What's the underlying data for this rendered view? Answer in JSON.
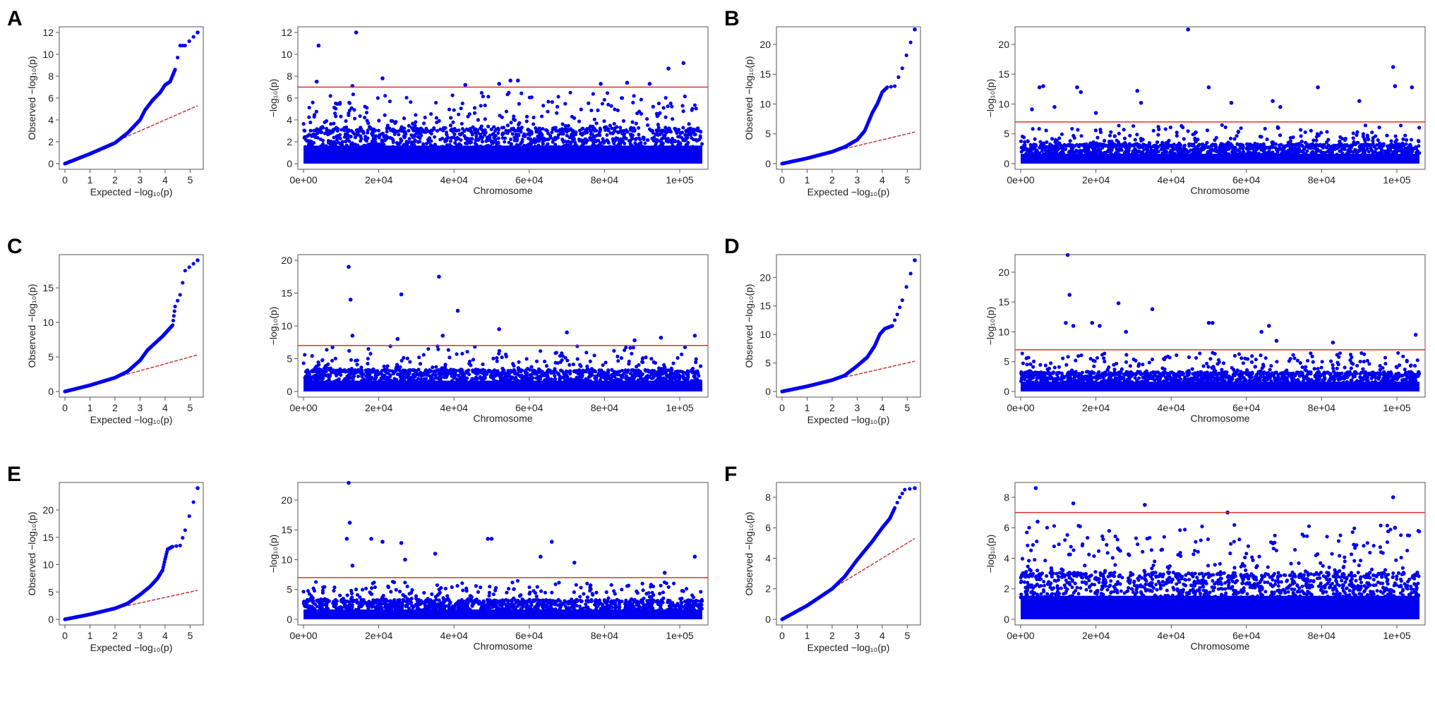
{
  "figure": {
    "title": ""
  },
  "colors": {
    "points": "#0000ee",
    "threshold": "#e0302a",
    "diagonal": "#c62828",
    "axis": "#555555",
    "text": "#222222"
  },
  "chart_data": [
    {
      "panel": "A",
      "qq": {
        "type": "scatter",
        "xlabel": "Expected −log₁₀(p)",
        "ylabel": "Observed −log₁₀(p)",
        "xlim": [
          0,
          5.3
        ],
        "ylim": [
          0,
          12
        ],
        "xticks": [
          0,
          1,
          2,
          3,
          4,
          5
        ],
        "yticks": [
          0,
          2,
          4,
          6,
          8,
          10,
          12
        ],
        "curve": [
          [
            0,
            0
          ],
          [
            1,
            0.9
          ],
          [
            2,
            1.9
          ],
          [
            2.5,
            2.8
          ],
          [
            3,
            4.0
          ],
          [
            3.2,
            4.9
          ],
          [
            3.5,
            5.8
          ],
          [
            3.8,
            6.5
          ],
          [
            4.0,
            7.2
          ],
          [
            4.2,
            7.5
          ],
          [
            4.4,
            8.6
          ],
          [
            4.6,
            10.8
          ],
          [
            4.8,
            10.8
          ],
          [
            5.3,
            12.0
          ]
        ],
        "diagonal_to": 5.3
      },
      "manhattan": {
        "type": "scatter",
        "xlabel": "Chromosome",
        "ylabel": "−log₁₀(p)",
        "xlim": [
          0,
          106000
        ],
        "ylim": [
          0,
          12
        ],
        "xticks": [
          "0e+00",
          "2e+04",
          "4e+04",
          "6e+04",
          "8e+04",
          "1e+05"
        ],
        "xtick_values": [
          0,
          20000,
          40000,
          60000,
          80000,
          100000
        ],
        "yticks": [
          0,
          2,
          4,
          6,
          8,
          10,
          12
        ],
        "threshold": 7.0,
        "significant_hits": [
          [
            4000,
            10.8
          ],
          [
            3500,
            7.5
          ],
          [
            14000,
            12.0
          ],
          [
            21000,
            7.8
          ],
          [
            43000,
            7.2
          ],
          [
            52000,
            7.3
          ],
          [
            55000,
            7.6
          ],
          [
            57000,
            7.6
          ],
          [
            79000,
            7.3
          ],
          [
            86000,
            7.4
          ],
          [
            92000,
            7.3
          ],
          [
            97000,
            8.7
          ],
          [
            101000,
            9.2
          ],
          [
            13000,
            7.1
          ]
        ],
        "bulk_max": 3.0,
        "scatter_max": 6.5
      }
    },
    {
      "panel": "B",
      "qq": {
        "type": "scatter",
        "xlabel": "Expected −log₁₀(p)",
        "ylabel": "Observed −log₁₀(p)",
        "xlim": [
          0,
          5.3
        ],
        "ylim": [
          0,
          22
        ],
        "xticks": [
          0,
          1,
          2,
          3,
          4,
          5
        ],
        "yticks": [
          0,
          5,
          10,
          15,
          20
        ],
        "curve": [
          [
            0,
            0
          ],
          [
            1,
            0.9
          ],
          [
            2,
            2.0
          ],
          [
            2.5,
            2.8
          ],
          [
            3,
            4.0
          ],
          [
            3.3,
            5.5
          ],
          [
            3.6,
            8.5
          ],
          [
            3.8,
            10.0
          ],
          [
            4.0,
            12.0
          ],
          [
            4.2,
            12.8
          ],
          [
            4.5,
            13.0
          ],
          [
            4.8,
            16.0
          ],
          [
            5.3,
            22.5
          ]
        ],
        "diagonal_to": 5.3
      },
      "manhattan": {
        "type": "scatter",
        "xlabel": "Chromosome",
        "ylabel": "−log₁₀(p)",
        "xlim": [
          0,
          106000
        ],
        "ylim": [
          0,
          22
        ],
        "xticks": [
          "0e+00",
          "2e+04",
          "4e+04",
          "6e+04",
          "8e+04",
          "1e+05"
        ],
        "xtick_values": [
          0,
          20000,
          40000,
          60000,
          80000,
          100000
        ],
        "yticks": [
          0,
          5,
          10,
          15,
          20
        ],
        "threshold": 7.0,
        "significant_hits": [
          [
            3000,
            9.1
          ],
          [
            5000,
            12.8
          ],
          [
            6000,
            13.0
          ],
          [
            9000,
            9.5
          ],
          [
            15000,
            12.8
          ],
          [
            16000,
            12.0
          ],
          [
            31000,
            12.2
          ],
          [
            32000,
            10.2
          ],
          [
            44500,
            22.5
          ],
          [
            50000,
            12.8
          ],
          [
            56000,
            10.2
          ],
          [
            67000,
            10.5
          ],
          [
            69000,
            9.5
          ],
          [
            79000,
            12.8
          ],
          [
            90000,
            10.5
          ],
          [
            99000,
            16.2
          ],
          [
            99500,
            13.0
          ],
          [
            104000,
            12.8
          ],
          [
            20000,
            8.5
          ]
        ],
        "bulk_max": 3.0,
        "scatter_max": 6.5
      }
    },
    {
      "panel": "C",
      "qq": {
        "type": "scatter",
        "xlabel": "Expected −log₁₀(p)",
        "ylabel": "Observed −log₁₀(p)",
        "xlim": [
          0,
          5.3
        ],
        "ylim": [
          0,
          19
        ],
        "xticks": [
          0,
          1,
          2,
          3,
          4,
          5
        ],
        "yticks": [
          0,
          5,
          10,
          15
        ],
        "curve": [
          [
            0,
            0
          ],
          [
            1,
            0.9
          ],
          [
            2,
            2.0
          ],
          [
            2.5,
            2.9
          ],
          [
            3,
            4.5
          ],
          [
            3.3,
            6.0
          ],
          [
            3.6,
            7.0
          ],
          [
            3.9,
            8.0
          ],
          [
            4.1,
            8.8
          ],
          [
            4.3,
            9.6
          ],
          [
            4.4,
            12.3
          ],
          [
            4.6,
            14.0
          ],
          [
            4.8,
            17.5
          ],
          [
            5.3,
            19.0
          ]
        ],
        "diagonal_to": 5.3
      },
      "manhattan": {
        "type": "scatter",
        "xlabel": "Chromosome",
        "ylabel": "−log₁₀(p)",
        "xlim": [
          0,
          106000
        ],
        "ylim": [
          0,
          20
        ],
        "xticks": [
          "0e+00",
          "2e+04",
          "4e+04",
          "6e+04",
          "8e+04",
          "1e+05"
        ],
        "xtick_values": [
          0,
          20000,
          40000,
          60000,
          80000,
          100000
        ],
        "yticks": [
          0,
          5,
          10,
          15,
          20
        ],
        "threshold": 7.0,
        "significant_hits": [
          [
            12000,
            19.0
          ],
          [
            12500,
            14.0
          ],
          [
            26000,
            14.8
          ],
          [
            36000,
            17.5
          ],
          [
            41000,
            12.3
          ],
          [
            13000,
            8.5
          ],
          [
            25000,
            8.0
          ],
          [
            37000,
            8.5
          ],
          [
            52000,
            9.5
          ],
          [
            70000,
            9.0
          ],
          [
            88000,
            7.8
          ],
          [
            95000,
            8.2
          ],
          [
            104000,
            8.5
          ]
        ],
        "bulk_max": 3.0,
        "scatter_max": 7.0
      }
    },
    {
      "panel": "D",
      "qq": {
        "type": "scatter",
        "xlabel": "Expected −log₁₀(p)",
        "ylabel": "Observed −log₁₀(p)",
        "xlim": [
          0,
          5.3
        ],
        "ylim": [
          0,
          23
        ],
        "xticks": [
          0,
          1,
          2,
          3,
          4,
          5
        ],
        "yticks": [
          0,
          5,
          10,
          15,
          20
        ],
        "curve": [
          [
            0,
            0
          ],
          [
            1,
            0.9
          ],
          [
            2,
            2.0
          ],
          [
            2.5,
            2.8
          ],
          [
            3,
            4.5
          ],
          [
            3.4,
            6.0
          ],
          [
            3.7,
            8.0
          ],
          [
            3.9,
            10.0
          ],
          [
            4.1,
            11.0
          ],
          [
            4.4,
            11.5
          ],
          [
            4.6,
            13.5
          ],
          [
            4.8,
            16.0
          ],
          [
            5.3,
            23.0
          ]
        ],
        "diagonal_to": 5.3
      },
      "manhattan": {
        "type": "scatter",
        "xlabel": "Chromosome",
        "ylabel": "−log₁₀(p)",
        "xlim": [
          0,
          106000
        ],
        "ylim": [
          0,
          22
        ],
        "xticks": [
          "0e+00",
          "2e+04",
          "4e+04",
          "6e+04",
          "8e+04",
          "1e+05"
        ],
        "xtick_values": [
          0,
          20000,
          40000,
          60000,
          80000,
          100000
        ],
        "yticks": [
          0,
          5,
          10,
          15,
          20
        ],
        "threshold": 7.0,
        "significant_hits": [
          [
            12500,
            23.0
          ],
          [
            13000,
            16.2
          ],
          [
            12000,
            11.5
          ],
          [
            14000,
            11.0
          ],
          [
            19000,
            11.5
          ],
          [
            21000,
            11.0
          ],
          [
            26000,
            14.8
          ],
          [
            28000,
            10.0
          ],
          [
            35000,
            13.8
          ],
          [
            50000,
            11.5
          ],
          [
            51000,
            11.5
          ],
          [
            64000,
            10.0
          ],
          [
            66000,
            11.0
          ],
          [
            68000,
            8.5
          ],
          [
            83000,
            8.2
          ],
          [
            105000,
            9.5
          ]
        ],
        "bulk_max": 3.0,
        "scatter_max": 6.5
      }
    },
    {
      "panel": "E",
      "qq": {
        "type": "scatter",
        "xlabel": "Expected −log₁₀(p)",
        "ylabel": "Observed −log₁₀(p)",
        "xlim": [
          0,
          5.3
        ],
        "ylim": [
          0,
          24
        ],
        "xticks": [
          0,
          1,
          2,
          3,
          4,
          5
        ],
        "yticks": [
          0,
          5,
          10,
          15,
          20
        ],
        "curve": [
          [
            0,
            0
          ],
          [
            1,
            0.9
          ],
          [
            2,
            2.0
          ],
          [
            2.5,
            2.9
          ],
          [
            3,
            4.5
          ],
          [
            3.4,
            6.0
          ],
          [
            3.7,
            7.5
          ],
          [
            3.9,
            9.0
          ],
          [
            4.0,
            11.0
          ],
          [
            4.1,
            12.8
          ],
          [
            4.3,
            13.3
          ],
          [
            4.6,
            13.5
          ],
          [
            4.8,
            16.3
          ],
          [
            5.3,
            24.0
          ]
        ],
        "diagonal_to": 5.3
      },
      "manhattan": {
        "type": "scatter",
        "xlabel": "Chromosome",
        "ylabel": "−log₁₀(p)",
        "xlim": [
          0,
          106000
        ],
        "ylim": [
          0,
          22
        ],
        "xticks": [
          "0e+00",
          "2e+04",
          "4e+04",
          "6e+04",
          "8e+04",
          "1e+05"
        ],
        "xtick_values": [
          0,
          20000,
          40000,
          60000,
          80000,
          100000
        ],
        "yticks": [
          0,
          5,
          10,
          15,
          20
        ],
        "threshold": 7.0,
        "significant_hits": [
          [
            12000,
            24.0
          ],
          [
            12300,
            16.2
          ],
          [
            11500,
            13.5
          ],
          [
            13000,
            9.0
          ],
          [
            18000,
            13.5
          ],
          [
            21000,
            13.0
          ],
          [
            26000,
            12.8
          ],
          [
            27000,
            10.0
          ],
          [
            35000,
            11.0
          ],
          [
            49000,
            13.5
          ],
          [
            50000,
            13.5
          ],
          [
            63000,
            10.5
          ],
          [
            66000,
            13.0
          ],
          [
            72000,
            9.5
          ],
          [
            96000,
            7.8
          ],
          [
            104000,
            10.5
          ]
        ],
        "bulk_max": 3.0,
        "scatter_max": 6.5
      }
    },
    {
      "panel": "F",
      "qq": {
        "type": "scatter",
        "xlabel": "Expected −log₁₀(p)",
        "ylabel": "Observed −log₁₀(p)",
        "xlim": [
          0,
          5.3
        ],
        "ylim": [
          0,
          8.6
        ],
        "xticks": [
          0,
          1,
          2,
          3,
          4,
          5
        ],
        "yticks": [
          0,
          2,
          4,
          6,
          8
        ],
        "curve": [
          [
            0,
            0
          ],
          [
            1,
            0.9
          ],
          [
            2,
            2.0
          ],
          [
            2.5,
            2.8
          ],
          [
            3,
            3.9
          ],
          [
            3.3,
            4.5
          ],
          [
            3.6,
            5.1
          ],
          [
            4.0,
            6.0
          ],
          [
            4.3,
            6.6
          ],
          [
            4.5,
            7.3
          ],
          [
            4.7,
            8.0
          ],
          [
            4.9,
            8.5
          ],
          [
            5.3,
            8.6
          ]
        ],
        "diagonal_to": 5.3
      },
      "manhattan": {
        "type": "scatter",
        "xlabel": "Chromosome",
        "ylabel": "−log₁₀(p)",
        "xlim": [
          0,
          106000
        ],
        "ylim": [
          0,
          8.6
        ],
        "xticks": [
          "0e+00",
          "2e+04",
          "4e+04",
          "6e+04",
          "8e+04",
          "1e+05"
        ],
        "xtick_values": [
          0,
          20000,
          40000,
          60000,
          80000,
          100000
        ],
        "yticks": [
          0,
          2,
          4,
          6,
          8
        ],
        "threshold": 7.0,
        "significant_hits": [
          [
            4000,
            8.6
          ],
          [
            14000,
            7.6
          ],
          [
            33000,
            7.5
          ],
          [
            55000,
            7.0
          ],
          [
            99000,
            8.0
          ],
          [
            4500,
            6.4
          ],
          [
            99500,
            6.0
          ]
        ],
        "bulk_max": 2.8,
        "scatter_max": 6.2
      }
    }
  ]
}
